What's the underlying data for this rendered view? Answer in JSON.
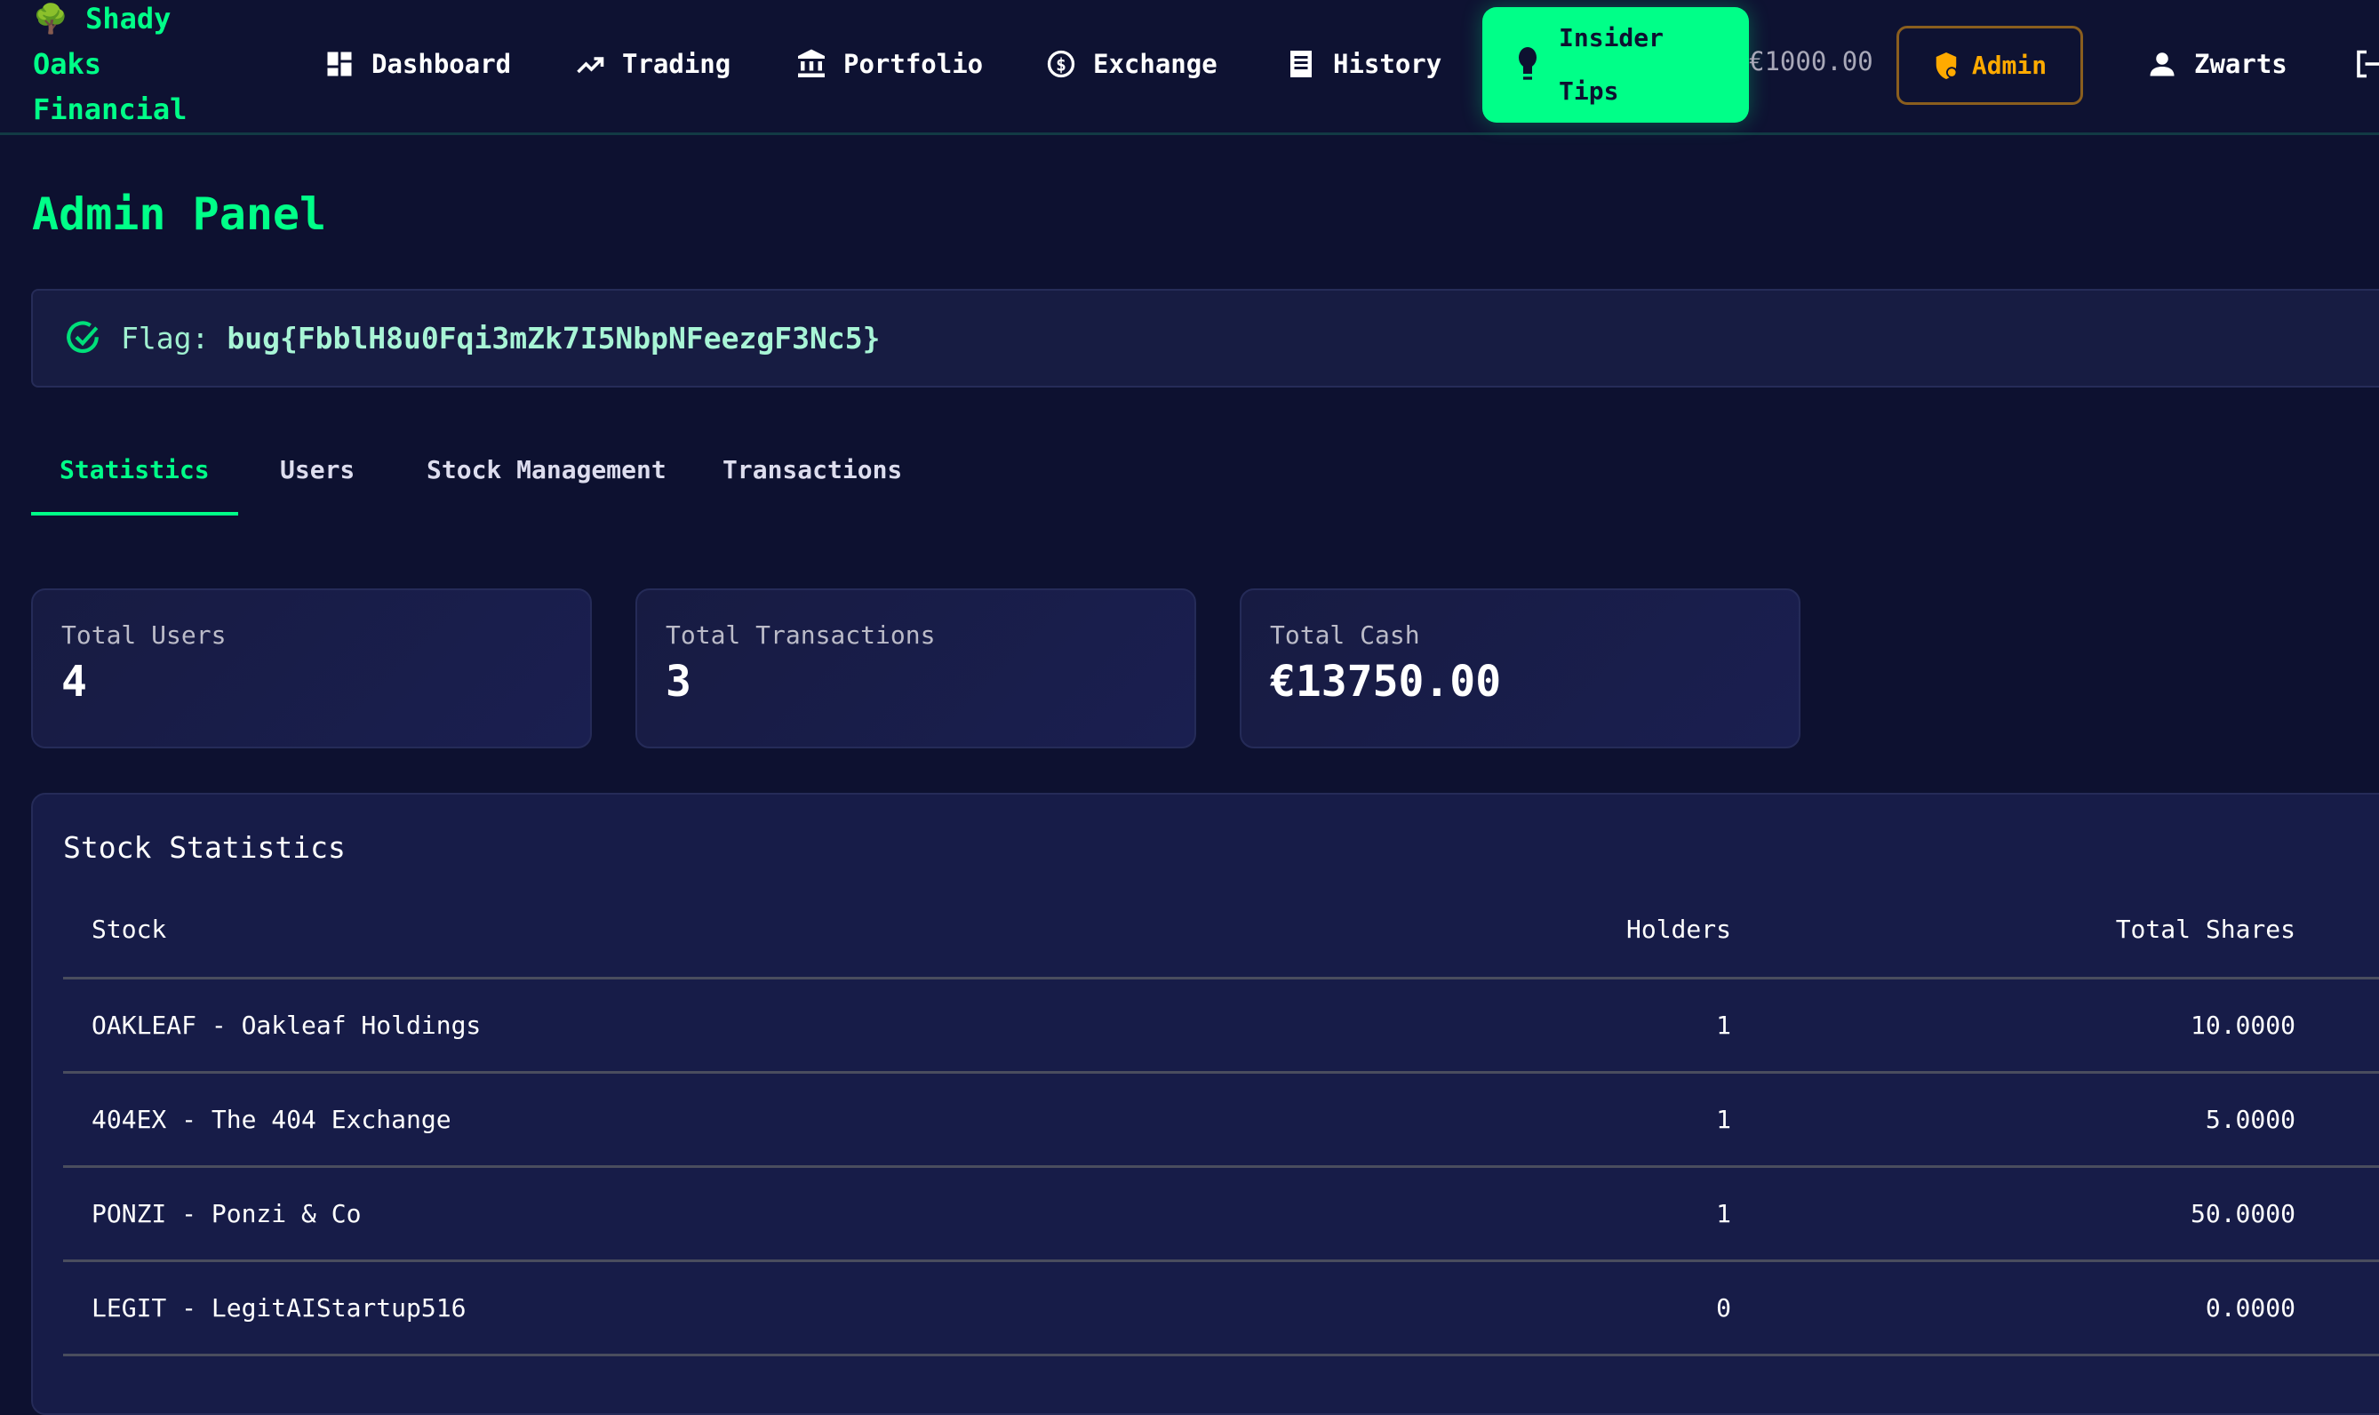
{
  "brand": {
    "line1": "Shady",
    "line2": "Oaks",
    "line3": "Financial",
    "icon": "tree-icon"
  },
  "nav": [
    {
      "label": "Dashboard",
      "icon": "dashboard-icon"
    },
    {
      "label": "Trading",
      "icon": "trending-up-icon"
    },
    {
      "label": "Portfolio",
      "icon": "bank-icon"
    },
    {
      "label": "Exchange",
      "icon": "currency-exchange-icon"
    },
    {
      "label": "History",
      "icon": "receipt-icon"
    }
  ],
  "insider_tips": {
    "line1": "Insider",
    "line2": "Tips",
    "icon": "lightbulb-icon"
  },
  "cash": "€1000.00",
  "admin_label": "Admin",
  "user": "Zwarts",
  "page_title": "Admin Panel",
  "flag": {
    "label": "Flag:",
    "value": "bug{FbblH8u0Fqi3mZk7I5NbpNFeezgF3Nc5}"
  },
  "tabs": [
    "Statistics",
    "Users",
    "Stock Management",
    "Transactions"
  ],
  "stats": [
    {
      "label": "Total Users",
      "value": "4"
    },
    {
      "label": "Total Transactions",
      "value": "3"
    },
    {
      "label": "Total Cash",
      "value": "€13750.00"
    }
  ],
  "stock_stats": {
    "title": "Stock Statistics",
    "headers": [
      "Stock",
      "Holders",
      "Total Shares"
    ],
    "rows": [
      [
        "OAKLEAF - Oakleaf Holdings",
        "1",
        "10.0000"
      ],
      [
        "404EX - The 404 Exchange",
        "1",
        "5.0000"
      ],
      [
        "PONZI - Ponzi & Co",
        "1",
        "50.0000"
      ],
      [
        "LEGIT - LegitAIStartup516",
        "0",
        "0.0000"
      ]
    ]
  },
  "colors": {
    "accent": "#00ff88",
    "admin": "#ffaa00",
    "background": "#0d1130"
  }
}
